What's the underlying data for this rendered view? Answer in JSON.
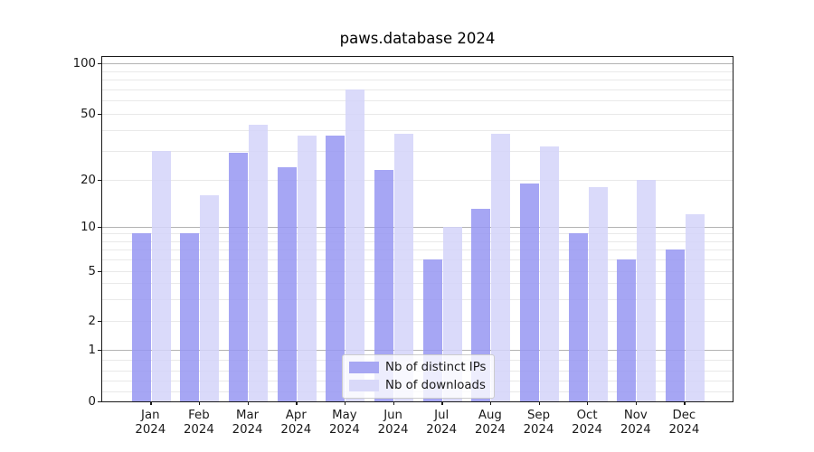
{
  "title": "paws.database 2024",
  "chart_data": {
    "type": "bar",
    "title": "paws.database 2024",
    "categories": [
      "Jan 2024",
      "Feb 2024",
      "Mar 2024",
      "Apr 2024",
      "May 2024",
      "Jun 2024",
      "Jul 2024",
      "Aug 2024",
      "Sep 2024",
      "Oct 2024",
      "Nov 2024",
      "Dec 2024"
    ],
    "month_labels": [
      "Jan",
      "Feb",
      "Mar",
      "Apr",
      "May",
      "Jun",
      "Jul",
      "Aug",
      "Sep",
      "Oct",
      "Nov",
      "Dec"
    ],
    "year_label": "2024",
    "series": [
      {
        "name": "Nb of distinct IPs",
        "color": "#a7a7f3",
        "fill": "rgba(151,151,242,0.85)",
        "values": [
          9,
          9,
          29,
          24,
          37,
          23,
          6,
          13,
          19,
          9,
          6,
          7
        ]
      },
      {
        "name": "Nb of downloads",
        "color": "#d9d9f9",
        "fill": "rgba(212,212,249,0.85)",
        "values": [
          30,
          16,
          43,
          37,
          70,
          38,
          10,
          38,
          32,
          18,
          20,
          12
        ]
      }
    ],
    "yticks": [
      0,
      1,
      2,
      5,
      10,
      20,
      50,
      100
    ],
    "ytick_labels": [
      "0",
      "1",
      "2",
      "5",
      "10",
      "20",
      "50",
      "100"
    ],
    "ylim": [
      0,
      100
    ],
    "yscale": "log-like with zero baseline (ticks 0,1,2,5,10,20,50,100)",
    "grid": "horizontal major+minor",
    "legend_position": "lower center",
    "xlabel": "",
    "ylabel": ""
  },
  "colors": {
    "major_gridline": "#b3b3b3",
    "minor_gridline": "#e9e9e9",
    "axis": "#1a1a1a",
    "legend_border": "#cccccc"
  }
}
